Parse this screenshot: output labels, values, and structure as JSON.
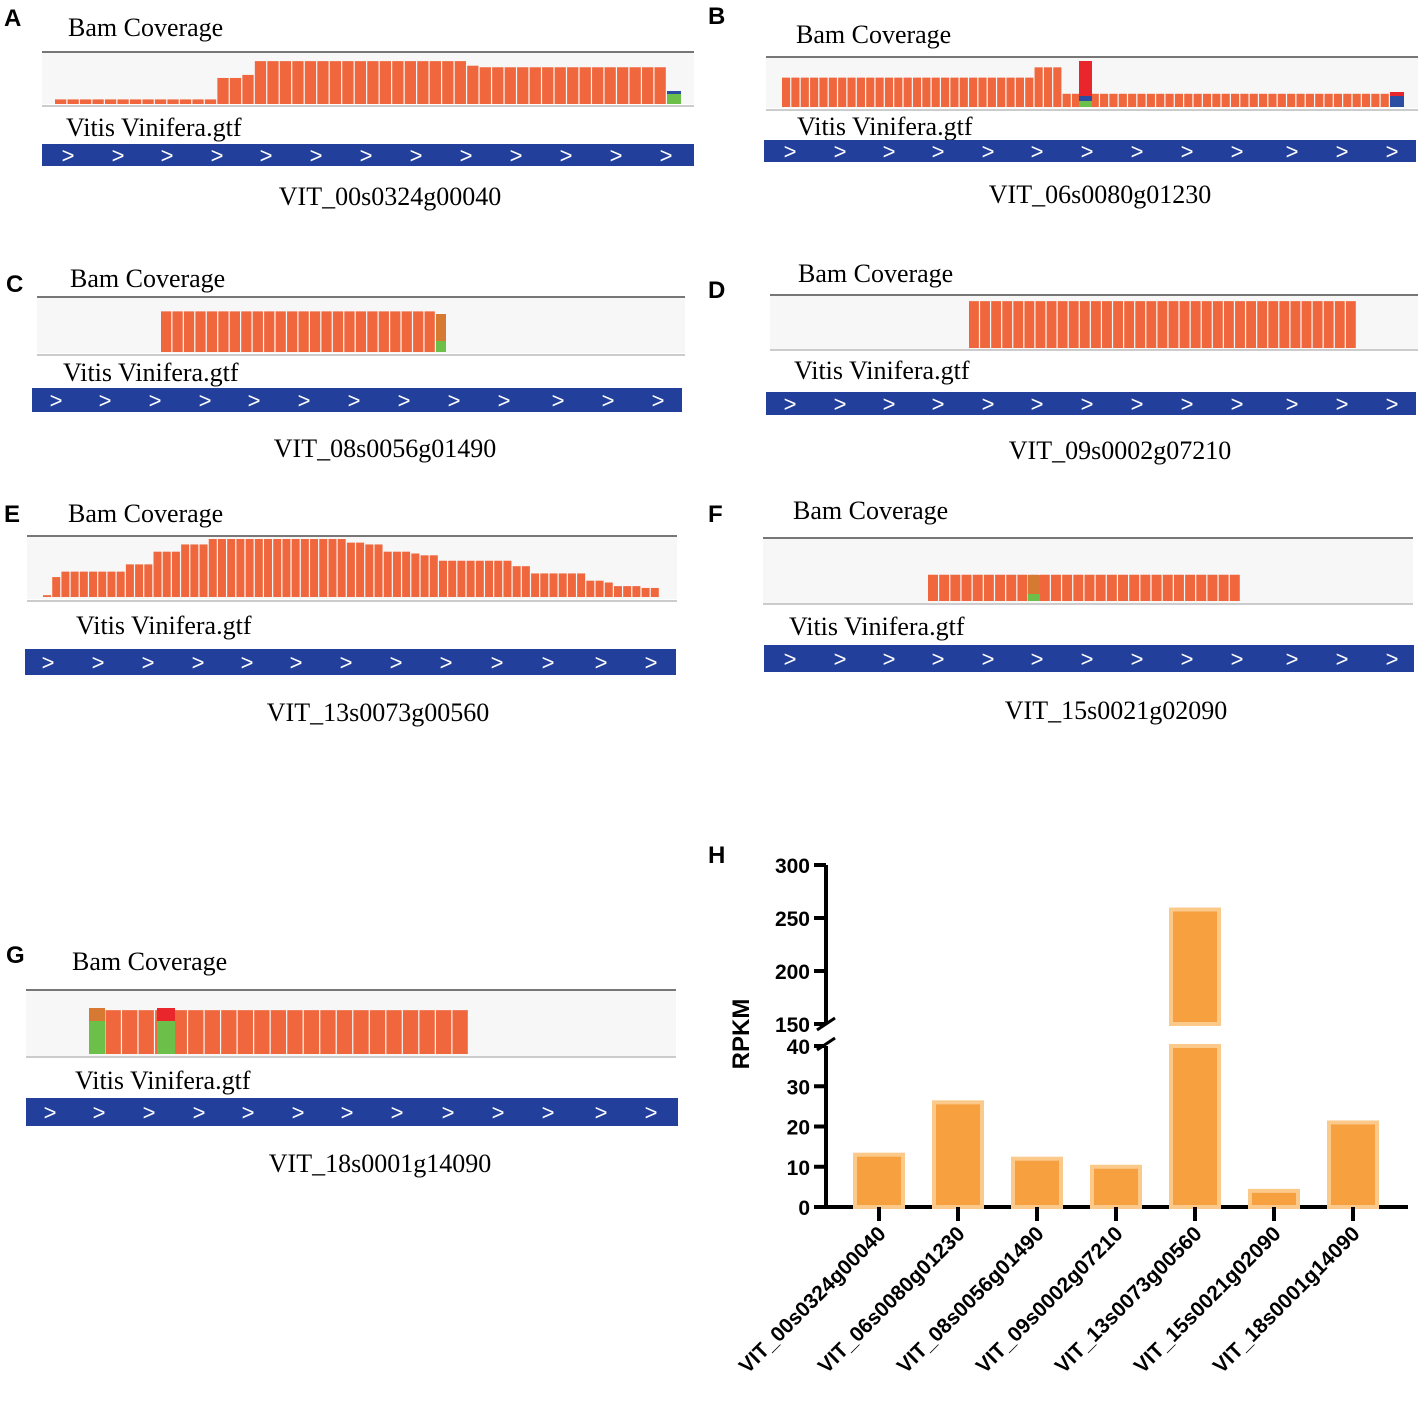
{
  "figure": {
    "track_title": "Bam Coverage",
    "annotation_track": "Vitis Vinifera.gtf",
    "strand_glyph": ">"
  },
  "colors": {
    "coverage": "#f0673e",
    "mismatch_orange": "#d67a33",
    "mismatch_green": "#6cc04a",
    "mismatch_red": "#e8262b",
    "mismatch_blue": "#2b4ea3",
    "gene_track": "#223f9b",
    "bar_fill": "#f7a040",
    "bar_edge": "#fbc98a",
    "panel_bg": "#f7f7f7"
  },
  "panels": [
    {
      "letter": "A",
      "gene": "VIT_00s0324g00040",
      "coverage": [
        6,
        6,
        6,
        6,
        6,
        6,
        6,
        6,
        6,
        6,
        6,
        6,
        6,
        34,
        34,
        38,
        56,
        56,
        56,
        56,
        56,
        56,
        56,
        56,
        56,
        56,
        56,
        56,
        56,
        56,
        56,
        56,
        56,
        50,
        48,
        48,
        48,
        48,
        48,
        48,
        48,
        48,
        48,
        48,
        48,
        48,
        48,
        48,
        48
      ]
    },
    {
      "letter": "B",
      "gene": "VIT_06s0080g01230",
      "coverage": [
        40,
        40,
        40,
        40,
        40,
        40,
        40,
        40,
        40,
        40,
        40,
        40,
        40,
        40,
        40,
        40,
        40,
        40,
        40,
        40,
        40,
        40,
        40,
        40,
        40,
        40,
        40,
        54,
        54,
        54,
        18,
        18,
        18,
        18,
        18,
        18,
        18,
        18,
        18,
        18,
        18,
        18,
        18,
        18,
        18,
        18,
        18,
        18,
        18,
        18,
        18,
        18,
        18,
        18,
        18,
        18,
        18,
        18,
        18,
        18,
        18,
        18,
        18,
        18,
        18
      ]
    },
    {
      "letter": "C",
      "gene": "VIT_08s0056g01490",
      "coverage": [
        50,
        50,
        50,
        50,
        50,
        50,
        50,
        50,
        50,
        50,
        50,
        50,
        50,
        50,
        50,
        50,
        50,
        50,
        50,
        50,
        50,
        50,
        50,
        50
      ]
    },
    {
      "letter": "D",
      "gene": "VIT_09s0002g07210",
      "coverage": [
        60,
        60,
        60,
        60,
        60,
        60,
        60,
        60,
        60,
        60,
        60,
        60,
        60,
        60,
        60,
        60,
        60,
        60,
        60,
        60,
        60,
        60,
        60,
        60,
        60,
        60,
        60,
        60,
        60,
        60,
        60,
        60,
        60,
        60,
        60
      ]
    },
    {
      "letter": "E",
      "gene": "VIT_13s0073g00560",
      "coverage": [
        2,
        22,
        28,
        28,
        28,
        28,
        28,
        28,
        28,
        36,
        36,
        36,
        50,
        50,
        50,
        58,
        58,
        58,
        64,
        64,
        64,
        64,
        64,
        64,
        64,
        64,
        64,
        64,
        64,
        64,
        64,
        64,
        64,
        60,
        60,
        58,
        58,
        50,
        50,
        50,
        48,
        46,
        46,
        40,
        40,
        40,
        40,
        40,
        40,
        40,
        40,
        34,
        34,
        26,
        26,
        26,
        26,
        26,
        26,
        18,
        18,
        16,
        12,
        12,
        12,
        10,
        10
      ]
    },
    {
      "letter": "F",
      "gene": "VIT_15s0021g02090",
      "coverage": [
        28,
        28,
        28,
        28,
        28,
        28,
        28,
        28,
        28,
        28,
        28,
        28,
        28,
        28,
        28,
        28,
        28,
        28,
        28,
        28,
        28,
        28,
        28,
        28,
        28,
        28,
        28,
        28
      ]
    },
    {
      "letter": "G",
      "gene": "VIT_18s0001g14090",
      "coverage": [
        46,
        46,
        46,
        46,
        46,
        46,
        46,
        46,
        46,
        46,
        46,
        46,
        46,
        46,
        46,
        46,
        46,
        46,
        46,
        46,
        46,
        46,
        46
      ]
    }
  ],
  "chart_letter": "H",
  "chart_data": {
    "type": "bar",
    "categories": [
      "VIT_00s0324g00040",
      "VIT_06s0080g01230",
      "VIT_08s0056g01490",
      "VIT_09s0002g07210",
      "VIT_13s0073g00560",
      "VIT_15s0021g02090",
      "VIT_18s0001g14090"
    ],
    "values": [
      13,
      26,
      12,
      10,
      258,
      4,
      21
    ],
    "ylabel": "RPKM",
    "xlabel": "",
    "title": "",
    "broken_axis": {
      "lower_range": [
        0,
        40
      ],
      "upper_range": [
        150,
        300
      ]
    },
    "lower_ticks": [
      0,
      10,
      20,
      30,
      40
    ],
    "upper_ticks": [
      150,
      200,
      250,
      300
    ]
  }
}
